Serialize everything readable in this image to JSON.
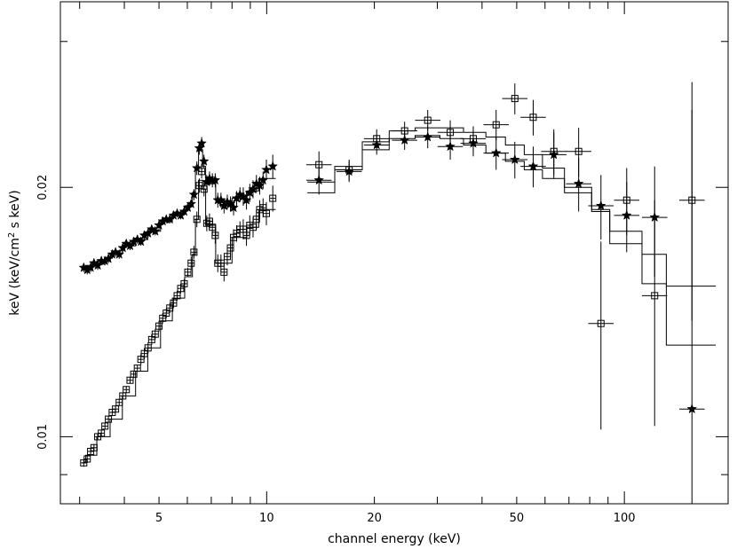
{
  "chart_data": {
    "type": "scatter",
    "title": "",
    "xlabel": "channel energy (keV)",
    "ylabel_prefix": "keV (keV/cm",
    "ylabel_sup": "2",
    "ylabel_suffix": " s keV)",
    "x_scale": "log",
    "y_scale": "log",
    "xlim": [
      2.65,
      195
    ],
    "ylim": [
      0.0083,
      0.0335
    ],
    "x_ticks": [
      {
        "value": 5,
        "label": "5"
      },
      {
        "value": 10,
        "label": "10"
      },
      {
        "value": 20,
        "label": "20"
      },
      {
        "value": 50,
        "label": "50"
      },
      {
        "value": 100,
        "label": "100"
      }
    ],
    "y_ticks": [
      {
        "value": 0.01,
        "label": "0.01"
      },
      {
        "value": 0.02,
        "label": "0.02"
      }
    ],
    "grid": false,
    "legend": "none",
    "series": [
      {
        "marker": "star",
        "points": [
          [
            3.08,
            0.016,
            0.0002
          ],
          [
            3.15,
            0.0159,
            0.0002
          ],
          [
            3.22,
            0.016,
            0.0002
          ],
          [
            3.29,
            0.0162,
            0.0002
          ],
          [
            3.37,
            0.0161,
            0.0002
          ],
          [
            3.45,
            0.0163,
            0.0002
          ],
          [
            3.53,
            0.0163,
            0.0002
          ],
          [
            3.61,
            0.0164,
            0.0002
          ],
          [
            3.7,
            0.0166,
            0.0002
          ],
          [
            3.78,
            0.0167,
            0.0002
          ],
          [
            3.87,
            0.0166,
            0.0002
          ],
          [
            3.96,
            0.0169,
            0.0002
          ],
          [
            4.05,
            0.0171,
            0.0002
          ],
          [
            4.15,
            0.017,
            0.0002
          ],
          [
            4.25,
            0.0172,
            0.0002
          ],
          [
            4.35,
            0.0173,
            0.0002
          ],
          [
            4.45,
            0.0172,
            0.0002
          ],
          [
            4.55,
            0.0175,
            0.0002
          ],
          [
            4.66,
            0.0176,
            0.0002
          ],
          [
            4.77,
            0.0178,
            0.0002
          ],
          [
            4.88,
            0.0177,
            0.0002
          ],
          [
            5.0,
            0.018,
            0.0002
          ],
          [
            5.12,
            0.0182,
            0.0002
          ],
          [
            5.24,
            0.0183,
            0.0002
          ],
          [
            5.36,
            0.0183,
            0.0002
          ],
          [
            5.49,
            0.0185,
            0.0002
          ],
          [
            5.62,
            0.0186,
            0.0002
          ],
          [
            5.75,
            0.0185,
            0.0002
          ],
          [
            5.88,
            0.0187,
            0.0002
          ],
          [
            6.02,
            0.0189,
            0.0002
          ],
          [
            6.15,
            0.0191,
            0.0002
          ],
          [
            6.26,
            0.0196,
            0.0003
          ],
          [
            6.38,
            0.0211,
            0.0004
          ],
          [
            6.48,
            0.0223,
            0.0004
          ],
          [
            6.58,
            0.0226,
            0.0004
          ],
          [
            6.68,
            0.0215,
            0.0004
          ],
          [
            6.8,
            0.0203,
            0.0004
          ],
          [
            6.92,
            0.0205,
            0.0004
          ],
          [
            7.05,
            0.0204,
            0.0004
          ],
          [
            7.18,
            0.0204,
            0.0004
          ],
          [
            7.3,
            0.0193,
            0.0004
          ],
          [
            7.45,
            0.0193,
            0.0004
          ],
          [
            7.6,
            0.019,
            0.0004
          ],
          [
            7.76,
            0.0192,
            0.0004
          ],
          [
            7.92,
            0.0191,
            0.0004
          ],
          [
            8.08,
            0.0189,
            0.0004
          ],
          [
            8.24,
            0.0194,
            0.0004
          ],
          [
            8.42,
            0.0196,
            0.0004
          ],
          [
            8.6,
            0.0195,
            0.0005
          ],
          [
            8.78,
            0.0193,
            0.0005
          ],
          [
            8.97,
            0.0197,
            0.0005
          ],
          [
            9.16,
            0.0199,
            0.0005
          ],
          [
            9.36,
            0.0202,
            0.0005
          ],
          [
            9.56,
            0.0201,
            0.0005
          ],
          [
            9.77,
            0.0204,
            0.0005
          ],
          [
            9.98,
            0.021,
            0.0006
          ],
          [
            10.4,
            0.0212,
            0.0007
          ],
          [
            14.0,
            0.0204,
            0.0008
          ],
          [
            17.0,
            0.0209,
            0.0006
          ],
          [
            20.3,
            0.0225,
            0.0006
          ],
          [
            24.3,
            0.0228,
            0.0006
          ],
          [
            28.2,
            0.023,
            0.0007
          ],
          [
            32.6,
            0.0224,
            0.0008
          ],
          [
            37.8,
            0.0226,
            0.0008
          ],
          [
            43.8,
            0.022,
            0.001
          ],
          [
            49.4,
            0.0216,
            0.0011
          ],
          [
            55.6,
            0.0212,
            0.0012
          ],
          [
            63.5,
            0.0219,
            0.0014
          ],
          [
            74.5,
            0.0202,
            0.0015
          ],
          [
            86.0,
            0.019,
            0.0017
          ],
          [
            101.5,
            0.0185,
            0.0018
          ],
          [
            121.5,
            0.0184,
            0.0028
          ],
          [
            154.5,
            0.0108,
            0.016
          ]
        ]
      },
      {
        "marker": "open-square",
        "points": [
          [
            3.08,
            0.0093,
            0.0001
          ],
          [
            3.15,
            0.0094,
            0.0001
          ],
          [
            3.22,
            0.0096,
            0.0001
          ],
          [
            3.29,
            0.0097,
            0.0001
          ],
          [
            3.37,
            0.01,
            0.0001
          ],
          [
            3.45,
            0.0101,
            0.0001
          ],
          [
            3.53,
            0.0103,
            0.0001
          ],
          [
            3.61,
            0.0105,
            0.0001
          ],
          [
            3.7,
            0.0107,
            0.0001
          ],
          [
            3.78,
            0.0108,
            0.0001
          ],
          [
            3.87,
            0.011,
            0.0001
          ],
          [
            3.96,
            0.0112,
            0.0001
          ],
          [
            4.05,
            0.0114,
            0.0001
          ],
          [
            4.15,
            0.0117,
            0.0001
          ],
          [
            4.25,
            0.0119,
            0.0001
          ],
          [
            4.35,
            0.0121,
            0.0001
          ],
          [
            4.45,
            0.0124,
            0.0002
          ],
          [
            4.55,
            0.0126,
            0.0002
          ],
          [
            4.66,
            0.0128,
            0.0002
          ],
          [
            4.77,
            0.0131,
            0.0002
          ],
          [
            4.88,
            0.0133,
            0.0002
          ],
          [
            5.0,
            0.0136,
            0.0002
          ],
          [
            5.12,
            0.0139,
            0.0002
          ],
          [
            5.24,
            0.0141,
            0.0002
          ],
          [
            5.36,
            0.0143,
            0.0002
          ],
          [
            5.49,
            0.0145,
            0.0002
          ],
          [
            5.62,
            0.0148,
            0.0002
          ],
          [
            5.75,
            0.0151,
            0.0002
          ],
          [
            5.88,
            0.0153,
            0.0002
          ],
          [
            6.02,
            0.0158,
            0.0002
          ],
          [
            6.15,
            0.0162,
            0.0003
          ],
          [
            6.26,
            0.0167,
            0.0003
          ],
          [
            6.38,
            0.0183,
            0.0004
          ],
          [
            6.48,
            0.0201,
            0.0004
          ],
          [
            6.58,
            0.0209,
            0.0004
          ],
          [
            6.68,
            0.0199,
            0.0004
          ],
          [
            6.8,
            0.0181,
            0.0004
          ],
          [
            6.92,
            0.0182,
            0.0004
          ],
          [
            7.05,
            0.0179,
            0.0004
          ],
          [
            7.18,
            0.0175,
            0.0004
          ],
          [
            7.3,
            0.0162,
            0.0004
          ],
          [
            7.45,
            0.0162,
            0.0004
          ],
          [
            7.6,
            0.0158,
            0.0004
          ],
          [
            7.76,
            0.0165,
            0.0004
          ],
          [
            7.92,
            0.0169,
            0.0004
          ],
          [
            8.08,
            0.0174,
            0.0004
          ],
          [
            8.24,
            0.0176,
            0.0004
          ],
          [
            8.42,
            0.0178,
            0.0004
          ],
          [
            8.6,
            0.0178,
            0.0005
          ],
          [
            8.78,
            0.0175,
            0.0005
          ],
          [
            8.97,
            0.018,
            0.0005
          ],
          [
            9.16,
            0.0179,
            0.0005
          ],
          [
            9.36,
            0.0183,
            0.0005
          ],
          [
            9.56,
            0.0188,
            0.0005
          ],
          [
            9.77,
            0.0189,
            0.0005
          ],
          [
            9.98,
            0.0186,
            0.0006
          ],
          [
            10.4,
            0.0194,
            0.0007
          ],
          [
            14.0,
            0.0213,
            0.0008
          ],
          [
            17.0,
            0.021,
            0.0006
          ],
          [
            20.3,
            0.0229,
            0.0006
          ],
          [
            24.3,
            0.0234,
            0.0006
          ],
          [
            28.2,
            0.0241,
            0.0007
          ],
          [
            32.6,
            0.0233,
            0.0008
          ],
          [
            37.8,
            0.0229,
            0.0008
          ],
          [
            43.8,
            0.0238,
            0.001
          ],
          [
            49.4,
            0.0256,
            0.0011
          ],
          [
            55.6,
            0.0243,
            0.0012
          ],
          [
            63.5,
            0.0221,
            0.0014
          ],
          [
            74.5,
            0.0221,
            0.0015
          ],
          [
            86.0,
            0.0137,
            0.0035
          ],
          [
            101.5,
            0.0193,
            0.0018
          ],
          [
            121.5,
            0.0148,
            0.0045
          ],
          [
            154.5,
            0.0193,
            0.0055
          ]
        ]
      }
    ],
    "model_lines": [
      {
        "steps": [
          [
            3.04,
            3.12,
            0.016
          ],
          [
            3.12,
            3.35,
            0.0161
          ],
          [
            3.35,
            3.65,
            0.0163
          ],
          [
            3.65,
            3.95,
            0.0166
          ],
          [
            3.95,
            4.3,
            0.017
          ],
          [
            4.3,
            4.65,
            0.0173
          ],
          [
            4.65,
            5.05,
            0.0177
          ],
          [
            5.05,
            5.45,
            0.0182
          ],
          [
            5.45,
            5.9,
            0.0186
          ],
          [
            5.9,
            6.2,
            0.019
          ],
          [
            6.2,
            6.32,
            0.0197
          ],
          [
            6.32,
            6.45,
            0.0211
          ],
          [
            6.45,
            6.62,
            0.0222
          ],
          [
            6.62,
            6.75,
            0.0212
          ],
          [
            6.75,
            7.2,
            0.0202
          ],
          [
            7.2,
            7.4,
            0.0193
          ],
          [
            7.4,
            8.0,
            0.019
          ],
          [
            8.0,
            8.8,
            0.0194
          ],
          [
            8.8,
            9.5,
            0.0198
          ],
          [
            9.5,
            10.6,
            0.0205
          ],
          [
            13.0,
            15.5,
            0.0203
          ],
          [
            15.5,
            18.5,
            0.021
          ],
          [
            18.5,
            22.0,
            0.0222
          ],
          [
            22.0,
            26.0,
            0.0229
          ],
          [
            26.0,
            30.5,
            0.0231
          ],
          [
            30.5,
            35.5,
            0.0229
          ],
          [
            35.5,
            41.0,
            0.0225
          ],
          [
            41.0,
            46.5,
            0.022
          ],
          [
            46.5,
            52.5,
            0.0215
          ],
          [
            52.5,
            59.0,
            0.021
          ],
          [
            59.0,
            68.0,
            0.0205
          ],
          [
            68.0,
            81.0,
            0.0197
          ],
          [
            81.0,
            91.0,
            0.0188
          ],
          [
            91.0,
            112.0,
            0.0177
          ],
          [
            112.0,
            131.0,
            0.0166
          ],
          [
            131.0,
            180.0,
            0.0152
          ]
        ]
      },
      {
        "steps": [
          [
            3.04,
            3.12,
            0.0093
          ],
          [
            3.12,
            3.35,
            0.0095
          ],
          [
            3.35,
            3.65,
            0.01
          ],
          [
            3.65,
            3.95,
            0.0105
          ],
          [
            3.95,
            4.3,
            0.0112
          ],
          [
            4.3,
            4.65,
            0.012
          ],
          [
            4.65,
            5.05,
            0.0128
          ],
          [
            5.05,
            5.45,
            0.0138
          ],
          [
            5.45,
            5.9,
            0.0147
          ],
          [
            5.9,
            6.2,
            0.0156
          ],
          [
            6.2,
            6.32,
            0.0166
          ],
          [
            6.32,
            6.45,
            0.0183
          ],
          [
            6.45,
            6.62,
            0.0204
          ],
          [
            6.62,
            6.75,
            0.0199
          ],
          [
            6.75,
            7.2,
            0.018
          ],
          [
            7.2,
            7.4,
            0.0162
          ],
          [
            7.4,
            8.0,
            0.0162
          ],
          [
            8.0,
            8.8,
            0.0174
          ],
          [
            8.8,
            9.5,
            0.0179
          ],
          [
            9.5,
            10.6,
            0.0188
          ],
          [
            13.0,
            15.5,
            0.0197
          ],
          [
            15.5,
            18.5,
            0.0212
          ],
          [
            18.5,
            22.0,
            0.0227
          ],
          [
            22.0,
            26.0,
            0.0234
          ],
          [
            26.0,
            30.5,
            0.0236
          ],
          [
            30.5,
            35.5,
            0.0236
          ],
          [
            35.5,
            41.0,
            0.0233
          ],
          [
            41.0,
            46.5,
            0.023
          ],
          [
            46.5,
            52.5,
            0.0225
          ],
          [
            52.5,
            59.0,
            0.0219
          ],
          [
            59.0,
            68.0,
            0.0211
          ],
          [
            68.0,
            81.0,
            0.02
          ],
          [
            81.0,
            91.0,
            0.0187
          ],
          [
            91.0,
            112.0,
            0.0171
          ],
          [
            112.0,
            131.0,
            0.0153
          ],
          [
            131.0,
            180.0,
            0.0129
          ]
        ]
      }
    ]
  }
}
